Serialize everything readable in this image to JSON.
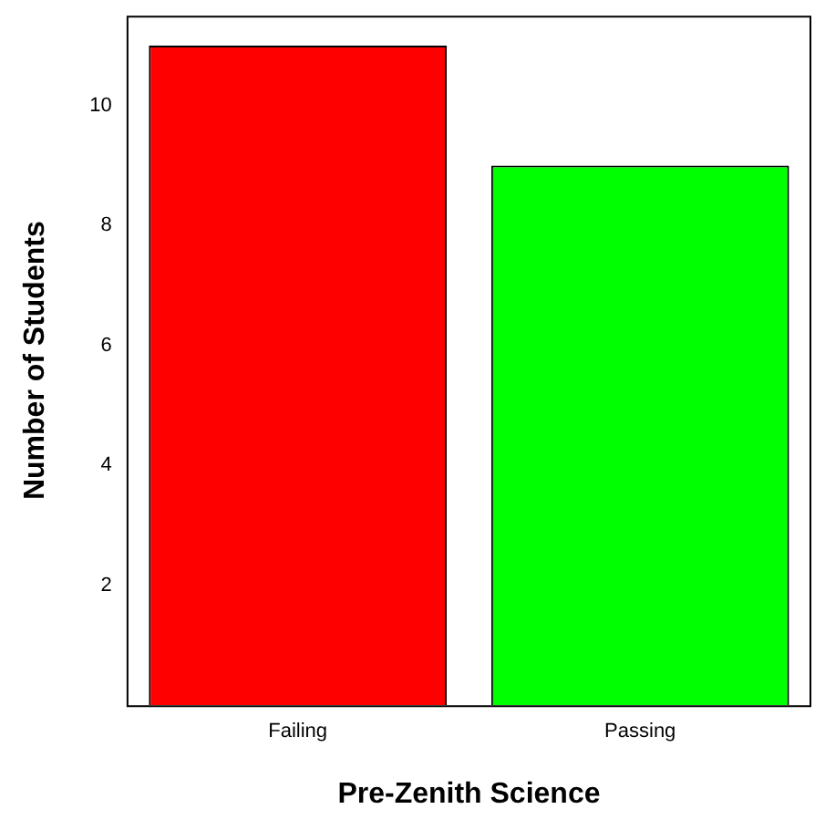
{
  "chart_data": {
    "type": "bar",
    "xlabel": "Pre-Zenith Science",
    "ylabel": "Number of Students",
    "categories": [
      "Failing",
      "Passing"
    ],
    "values": [
      11,
      9
    ],
    "colors": [
      "#ff0000",
      "#00ff00"
    ],
    "ylim": [
      0,
      11.5
    ],
    "yticks": [
      2,
      4,
      6,
      8,
      10
    ],
    "grid": false,
    "legend": false
  }
}
